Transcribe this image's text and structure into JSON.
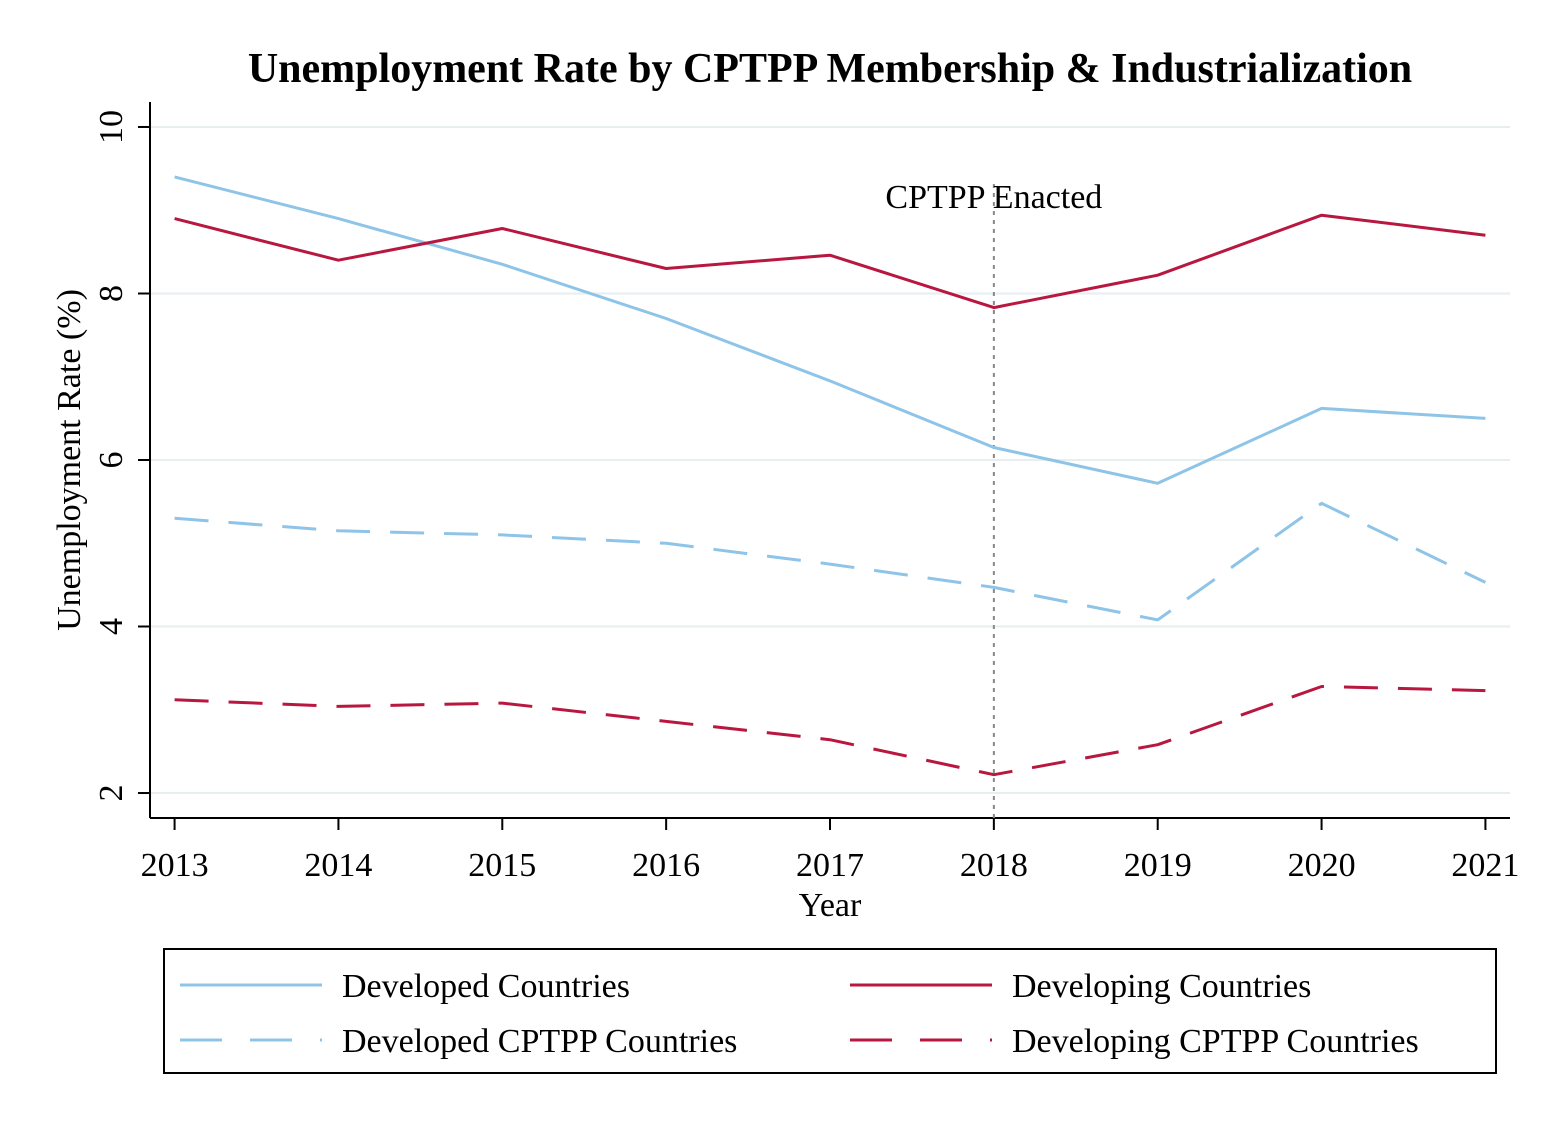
{
  "chart_data": {
    "type": "line",
    "title": "Unemployment Rate by CPTPP Membership & Industrialization",
    "xlabel": "Year",
    "ylabel": "Unemployment Rate (%)",
    "x": [
      2013,
      2014,
      2015,
      2016,
      2017,
      2018,
      2019,
      2020,
      2021
    ],
    "xlim": [
      2012.85,
      2021.15
    ],
    "ylim": [
      1.7,
      10.3
    ],
    "yticks": [
      2,
      4,
      6,
      8,
      10
    ],
    "grid": true,
    "legend_position": "bottom",
    "annotation": {
      "x": 2018,
      "label": "CPTPP Enacted"
    },
    "series": [
      {
        "name": "Developed Countries",
        "color": "#8ec4e8",
        "dash": "solid",
        "values": [
          9.4,
          8.9,
          8.35,
          7.7,
          6.95,
          6.15,
          5.72,
          6.62,
          6.5
        ]
      },
      {
        "name": "Developing Countries",
        "color": "#b8173f",
        "dash": "solid",
        "values": [
          8.9,
          8.4,
          8.78,
          8.3,
          8.46,
          7.83,
          8.22,
          8.94,
          8.7
        ]
      },
      {
        "name": "Developed CPTPP Countries",
        "color": "#8ec4e8",
        "dash": "dashed",
        "values": [
          5.3,
          5.15,
          5.1,
          5.0,
          4.75,
          4.47,
          4.08,
          5.48,
          4.53
        ]
      },
      {
        "name": "Developing CPTPP Countries",
        "color": "#b8173f",
        "dash": "dashed",
        "values": [
          3.12,
          3.04,
          3.08,
          2.86,
          2.64,
          2.22,
          2.58,
          3.28,
          3.23
        ]
      }
    ]
  }
}
